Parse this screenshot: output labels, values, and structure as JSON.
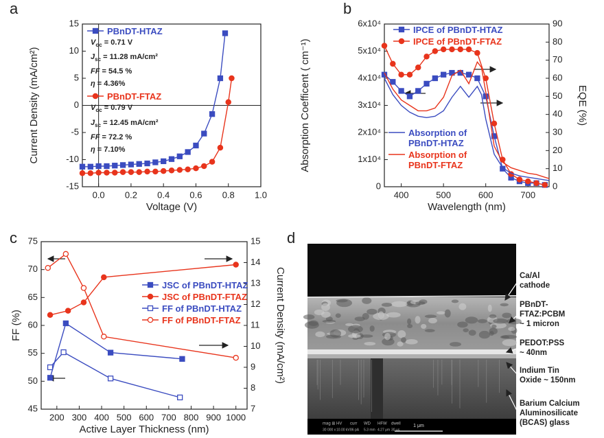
{
  "chart_data": [
    {
      "panel": "a",
      "type": "line",
      "x_label": "Voltage (V)",
      "y_label": "Current Density (mA/cm²)",
      "xlim": [
        -0.1,
        1.0
      ],
      "ylim": [
        -15,
        15
      ],
      "xticks": [
        {
          "value": 0,
          "label": "0.0"
        },
        0.2,
        0.4,
        0.6,
        0.8,
        {
          "value": 1,
          "label": "1.0"
        }
      ],
      "yticks": [
        -15,
        -10,
        -5,
        0,
        5,
        10,
        15
      ],
      "zero_lines": true,
      "series": [
        {
          "name": "PBnDT-HTAZ",
          "color": "#3b4cc0",
          "marker": "square",
          "fill": "filled",
          "legend": "upper left",
          "x": [
            -0.1,
            -0.05,
            0,
            0.05,
            0.1,
            0.15,
            0.2,
            0.25,
            0.3,
            0.35,
            0.4,
            0.45,
            0.5,
            0.55,
            0.6,
            0.65,
            0.7,
            0.75,
            0.78
          ],
          "values": [
            -11.3,
            -11.3,
            -11.2,
            -11.2,
            -11.1,
            -11.0,
            -10.9,
            -10.8,
            -10.7,
            -10.5,
            -10.3,
            -9.9,
            -9.4,
            -8.6,
            -7.4,
            -5.2,
            -1.6,
            5.0,
            13.3
          ],
          "notes": [
            {
              "symbol": "V",
              "sub": "oc",
              "text": " = 0.71 V"
            },
            {
              "symbol": "J",
              "sub": "sc",
              "text": " = 11.28 mA/cm²"
            },
            {
              "symbol": "FF",
              "text": " = 54.5 %"
            },
            {
              "symbol": "η",
              "text": " = 4.36%"
            }
          ]
        },
        {
          "name": "PBnDT-FTAZ",
          "color": "#e8341c",
          "marker": "circle",
          "fill": "filled",
          "legend": "upper left",
          "x": [
            -0.1,
            -0.05,
            0,
            0.05,
            0.1,
            0.15,
            0.2,
            0.25,
            0.3,
            0.35,
            0.4,
            0.45,
            0.5,
            0.55,
            0.6,
            0.65,
            0.7,
            0.75,
            0.8,
            0.82
          ],
          "values": [
            -12.5,
            -12.5,
            -12.4,
            -12.4,
            -12.4,
            -12.3,
            -12.3,
            -12.3,
            -12.2,
            -12.2,
            -12.1,
            -12.0,
            -11.9,
            -11.8,
            -11.6,
            -11.2,
            -10.4,
            -7.8,
            0.6,
            5.0
          ],
          "notes": [
            {
              "symbol": "V",
              "sub": "oc",
              "text": " = 0.79 V"
            },
            {
              "symbol": "J",
              "sub": "sc",
              "text": " = 12.45 mA/cm²"
            },
            {
              "symbol": "FF",
              "text": " = 72.2 %"
            },
            {
              "symbol": "η",
              "text": " = 7.10%"
            }
          ]
        }
      ]
    },
    {
      "panel": "b",
      "type": "line",
      "x_label": "Wavelength (nm)",
      "y_label": "Absorption Coefficent ( cm⁻¹)",
      "y2_label": "EQE (%)",
      "xlim": [
        360,
        750
      ],
      "ylim": [
        0,
        60000
      ],
      "y2lim": [
        0,
        90
      ],
      "xticks": [
        400,
        500,
        600,
        700
      ],
      "yticks": [
        0,
        {
          "value": 10000,
          "label": "1x10⁴"
        },
        {
          "value": 20000,
          "label": "2x10⁴"
        },
        {
          "value": 30000,
          "label": "3x10⁴"
        },
        {
          "value": 40000,
          "label": "4x10⁴"
        },
        {
          "value": 50000,
          "label": "5x10⁴"
        },
        {
          "value": 60000,
          "label": "6x10⁴"
        }
      ],
      "y2ticks": [
        0,
        10,
        20,
        30,
        40,
        50,
        60,
        70,
        80,
        90
      ],
      "series": [
        {
          "name": "IPCE of PBnDT-HTAZ",
          "color": "#3b4cc0",
          "marker": "square",
          "fill": "filled",
          "axis": "y2",
          "legend": "upper right",
          "x": [
            360,
            380,
            400,
            420,
            440,
            460,
            480,
            500,
            520,
            540,
            560,
            580,
            600,
            620,
            640,
            660,
            680,
            700,
            720,
            740
          ],
          "values": [
            62,
            58,
            53,
            50,
            53,
            57,
            60,
            62,
            63,
            63,
            62,
            60,
            50,
            28,
            10,
            5,
            3,
            2,
            2,
            1
          ]
        },
        {
          "name": "IPCE of PBnDT-FTAZ",
          "color": "#e8341c",
          "marker": "circle",
          "fill": "filled",
          "axis": "y2",
          "legend": "upper right",
          "x": [
            360,
            380,
            400,
            420,
            440,
            460,
            480,
            500,
            520,
            540,
            560,
            580,
            600,
            620,
            640,
            660,
            680,
            700,
            720,
            740
          ],
          "values": [
            78,
            68,
            62,
            62,
            66,
            72,
            75,
            76,
            76,
            76,
            76,
            74,
            60,
            35,
            15,
            7,
            4,
            3,
            2,
            1
          ]
        },
        {
          "name": "Absorption of PBnDT-HTAZ",
          "color": "#3b4cc0",
          "legend": "lower left",
          "x": [
            360,
            380,
            400,
            420,
            440,
            460,
            480,
            500,
            520,
            540,
            560,
            580,
            590,
            600,
            620,
            640,
            660,
            680,
            700,
            720,
            740,
            750
          ],
          "values": [
            40000,
            34000,
            30000,
            27500,
            26000,
            25500,
            26000,
            28000,
            33000,
            37000,
            33000,
            37000,
            34000,
            25000,
            12000,
            7000,
            5000,
            4000,
            3500,
            3000,
            2500,
            2300
          ]
        },
        {
          "name": "Absorption of PBnDT-FTAZ",
          "color": "#e8341c",
          "legend": "lower left",
          "x": [
            360,
            380,
            400,
            420,
            440,
            460,
            480,
            500,
            520,
            540,
            560,
            580,
            590,
            600,
            620,
            640,
            660,
            680,
            700,
            720,
            740,
            750
          ],
          "values": [
            42000,
            36000,
            32000,
            30000,
            28000,
            28000,
            29000,
            33000,
            41000,
            43000,
            38000,
            46000,
            44000,
            35000,
            15000,
            9000,
            7000,
            6000,
            5000,
            4500,
            3500,
            3000
          ]
        }
      ]
    },
    {
      "panel": "c",
      "type": "line",
      "x_label": "Active Layer Thickness (nm)",
      "y_label": "FF (%)",
      "y2_label": "Current Density (mA/cm²)",
      "xlim": [
        130,
        1050
      ],
      "ylim": [
        45,
        75
      ],
      "y2lim": [
        7,
        15
      ],
      "xticks": [
        200,
        300,
        400,
        500,
        600,
        700,
        800,
        900,
        1000
      ],
      "yticks": [
        45,
        50,
        55,
        60,
        65,
        70,
        75
      ],
      "y2ticks": [
        7,
        8,
        9,
        10,
        11,
        12,
        13,
        14,
        15
      ],
      "series": [
        {
          "name": "JSC of PBnDT-HTAZ",
          "color": "#3b4cc0",
          "marker": "square",
          "fill": "filled",
          "axis": "y2",
          "legend": "center right",
          "x": [
            170,
            240,
            440,
            760
          ],
          "values": [
            8.5,
            11.1,
            9.7,
            9.4
          ]
        },
        {
          "name": "JSC of PBnDT-FTAZ",
          "color": "#e8341c",
          "marker": "circle",
          "fill": "filled",
          "axis": "y2",
          "legend": "center right",
          "x": [
            170,
            250,
            320,
            410,
            1000
          ],
          "values": [
            11.5,
            11.7,
            12.1,
            13.3,
            13.9
          ]
        },
        {
          "name": "FF of PBnDT-HTAZ",
          "color": "#3b4cc0",
          "marker": "square",
          "fill": "open",
          "legend": "center right",
          "x": [
            170,
            230,
            440,
            750
          ],
          "values": [
            52.5,
            55.2,
            50.5,
            47.1
          ]
        },
        {
          "name": "FF of PBnDT-FTAZ",
          "color": "#e8341c",
          "marker": "circle",
          "fill": "open",
          "legend": "center right",
          "x": [
            160,
            240,
            320,
            410,
            1000
          ],
          "values": [
            70.3,
            72.8,
            66.7,
            58.0,
            54.2
          ]
        }
      ]
    }
  ],
  "sem_image": {
    "panel": "d",
    "labels": [
      [
        "Ca/Al",
        "cathode"
      ],
      [
        "PBnDT-",
        "FTAZ:PCBM",
        "~ 1 micron"
      ],
      [
        "PEDOT:PSS",
        "~ 40nm"
      ],
      [
        "Indium Tin",
        "Oxide ~ 150nm"
      ],
      [
        "Barium Calcium",
        "Aluminosilicate",
        "(BCAS) glass"
      ]
    ],
    "info_headers": [
      "mag ⊞",
      "HV",
      "curr",
      "WD",
      "HFW",
      "dwell"
    ],
    "info_values": [
      "30 000 x",
      "10.00 kV",
      "86 pA",
      "5.3 mm",
      "4.27 μm",
      "30 μs"
    ],
    "scale_bar": "1 μm"
  }
}
